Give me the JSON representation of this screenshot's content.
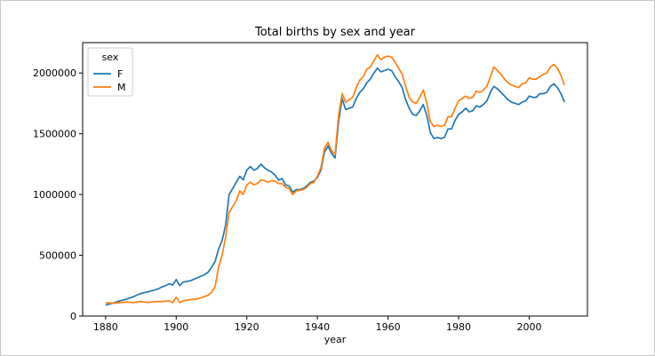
{
  "chart_data": {
    "type": "line",
    "title": "Total births by sex and year",
    "xlabel": "year",
    "ylabel": "",
    "xlim": [
      1873.5,
      2016.5
    ],
    "ylim": [
      0,
      2250000
    ],
    "x_ticks": [
      1880,
      1900,
      1920,
      1940,
      1960,
      1980,
      2000
    ],
    "y_ticks": [
      0,
      500000,
      1000000,
      1500000,
      2000000
    ],
    "x_tick_labels": [
      "1880",
      "1900",
      "1920",
      "1940",
      "1960",
      "1980",
      "2000"
    ],
    "y_tick_labels": [
      "0",
      "500000",
      "1000000",
      "1500000",
      "2000000"
    ],
    "grid": false,
    "legend": {
      "title": "sex",
      "placement": "top-left"
    },
    "series": [
      {
        "name": "F",
        "color": "#1f77b4",
        "points": [
          [
            1880,
            90000
          ],
          [
            1882,
            105000
          ],
          [
            1884,
            125000
          ],
          [
            1886,
            140000
          ],
          [
            1888,
            160000
          ],
          [
            1889,
            175000
          ],
          [
            1890,
            185000
          ],
          [
            1892,
            200000
          ],
          [
            1894,
            215000
          ],
          [
            1895,
            225000
          ],
          [
            1896,
            240000
          ],
          [
            1897,
            250000
          ],
          [
            1898,
            265000
          ],
          [
            1899,
            255000
          ],
          [
            1900,
            300000
          ],
          [
            1901,
            250000
          ],
          [
            1902,
            280000
          ],
          [
            1904,
            290000
          ],
          [
            1906,
            315000
          ],
          [
            1908,
            340000
          ],
          [
            1909,
            360000
          ],
          [
            1910,
            400000
          ],
          [
            1911,
            450000
          ],
          [
            1912,
            550000
          ],
          [
            1913,
            620000
          ],
          [
            1914,
            750000
          ],
          [
            1915,
            1000000
          ],
          [
            1916,
            1050000
          ],
          [
            1917,
            1100000
          ],
          [
            1918,
            1150000
          ],
          [
            1919,
            1120000
          ],
          [
            1920,
            1200000
          ],
          [
            1921,
            1230000
          ],
          [
            1922,
            1200000
          ],
          [
            1923,
            1215000
          ],
          [
            1924,
            1250000
          ],
          [
            1925,
            1220000
          ],
          [
            1926,
            1200000
          ],
          [
            1927,
            1185000
          ],
          [
            1928,
            1160000
          ],
          [
            1929,
            1120000
          ],
          [
            1930,
            1130000
          ],
          [
            1931,
            1080000
          ],
          [
            1932,
            1070000
          ],
          [
            1933,
            1020000
          ],
          [
            1934,
            1040000
          ],
          [
            1935,
            1040000
          ],
          [
            1936,
            1050000
          ],
          [
            1937,
            1070000
          ],
          [
            1938,
            1100000
          ],
          [
            1939,
            1110000
          ],
          [
            1940,
            1140000
          ],
          [
            1941,
            1200000
          ],
          [
            1942,
            1350000
          ],
          [
            1943,
            1400000
          ],
          [
            1944,
            1340000
          ],
          [
            1945,
            1300000
          ],
          [
            1946,
            1600000
          ],
          [
            1947,
            1790000
          ],
          [
            1948,
            1700000
          ],
          [
            1949,
            1710000
          ],
          [
            1950,
            1720000
          ],
          [
            1951,
            1790000
          ],
          [
            1952,
            1840000
          ],
          [
            1953,
            1870000
          ],
          [
            1954,
            1920000
          ],
          [
            1955,
            1950000
          ],
          [
            1956,
            2000000
          ],
          [
            1957,
            2040000
          ],
          [
            1958,
            2010000
          ],
          [
            1959,
            2020000
          ],
          [
            1960,
            2030000
          ],
          [
            1961,
            2020000
          ],
          [
            1962,
            1970000
          ],
          [
            1963,
            1930000
          ],
          [
            1964,
            1880000
          ],
          [
            1965,
            1780000
          ],
          [
            1966,
            1710000
          ],
          [
            1967,
            1660000
          ],
          [
            1968,
            1650000
          ],
          [
            1969,
            1690000
          ],
          [
            1970,
            1740000
          ],
          [
            1971,
            1650000
          ],
          [
            1972,
            1510000
          ],
          [
            1973,
            1460000
          ],
          [
            1974,
            1470000
          ],
          [
            1975,
            1460000
          ],
          [
            1976,
            1470000
          ],
          [
            1977,
            1540000
          ],
          [
            1978,
            1540000
          ],
          [
            1979,
            1610000
          ],
          [
            1980,
            1660000
          ],
          [
            1981,
            1680000
          ],
          [
            1982,
            1710000
          ],
          [
            1983,
            1680000
          ],
          [
            1984,
            1690000
          ],
          [
            1985,
            1730000
          ],
          [
            1986,
            1720000
          ],
          [
            1987,
            1740000
          ],
          [
            1988,
            1770000
          ],
          [
            1989,
            1840000
          ],
          [
            1990,
            1890000
          ],
          [
            1991,
            1870000
          ],
          [
            1992,
            1840000
          ],
          [
            1993,
            1810000
          ],
          [
            1994,
            1780000
          ],
          [
            1995,
            1760000
          ],
          [
            1996,
            1750000
          ],
          [
            1997,
            1740000
          ],
          [
            1998,
            1760000
          ],
          [
            1999,
            1770000
          ],
          [
            2000,
            1810000
          ],
          [
            2001,
            1800000
          ],
          [
            2002,
            1800000
          ],
          [
            2003,
            1830000
          ],
          [
            2004,
            1830000
          ],
          [
            2005,
            1840000
          ],
          [
            2006,
            1890000
          ],
          [
            2007,
            1910000
          ],
          [
            2008,
            1880000
          ],
          [
            2009,
            1830000
          ],
          [
            2010,
            1760000
          ]
        ]
      },
      {
        "name": "M",
        "color": "#ff7f0e",
        "points": [
          [
            1880,
            110000
          ],
          [
            1882,
            105000
          ],
          [
            1884,
            110000
          ],
          [
            1886,
            115000
          ],
          [
            1888,
            110000
          ],
          [
            1889,
            115000
          ],
          [
            1890,
            120000
          ],
          [
            1892,
            112000
          ],
          [
            1894,
            118000
          ],
          [
            1896,
            120000
          ],
          [
            1898,
            125000
          ],
          [
            1899,
            110000
          ],
          [
            1900,
            155000
          ],
          [
            1901,
            110000
          ],
          [
            1902,
            125000
          ],
          [
            1904,
            135000
          ],
          [
            1906,
            140000
          ],
          [
            1908,
            160000
          ],
          [
            1909,
            170000
          ],
          [
            1910,
            195000
          ],
          [
            1911,
            240000
          ],
          [
            1912,
            400000
          ],
          [
            1913,
            500000
          ],
          [
            1914,
            650000
          ],
          [
            1915,
            850000
          ],
          [
            1916,
            900000
          ],
          [
            1917,
            950000
          ],
          [
            1918,
            1030000
          ],
          [
            1919,
            1000000
          ],
          [
            1920,
            1080000
          ],
          [
            1921,
            1100000
          ],
          [
            1922,
            1080000
          ],
          [
            1923,
            1090000
          ],
          [
            1924,
            1120000
          ],
          [
            1925,
            1115000
          ],
          [
            1926,
            1100000
          ],
          [
            1927,
            1115000
          ],
          [
            1928,
            1110000
          ],
          [
            1929,
            1090000
          ],
          [
            1930,
            1090000
          ],
          [
            1931,
            1060000
          ],
          [
            1932,
            1050000
          ],
          [
            1933,
            1000000
          ],
          [
            1934,
            1030000
          ],
          [
            1935,
            1035000
          ],
          [
            1936,
            1040000
          ],
          [
            1937,
            1060000
          ],
          [
            1938,
            1090000
          ],
          [
            1939,
            1100000
          ],
          [
            1940,
            1150000
          ],
          [
            1941,
            1220000
          ],
          [
            1942,
            1380000
          ],
          [
            1943,
            1430000
          ],
          [
            1944,
            1360000
          ],
          [
            1945,
            1330000
          ],
          [
            1946,
            1650000
          ],
          [
            1947,
            1830000
          ],
          [
            1948,
            1760000
          ],
          [
            1949,
            1780000
          ],
          [
            1950,
            1800000
          ],
          [
            1951,
            1880000
          ],
          [
            1952,
            1940000
          ],
          [
            1953,
            1970000
          ],
          [
            1954,
            2030000
          ],
          [
            1955,
            2050000
          ],
          [
            1956,
            2100000
          ],
          [
            1957,
            2150000
          ],
          [
            1958,
            2110000
          ],
          [
            1959,
            2130000
          ],
          [
            1960,
            2140000
          ],
          [
            1961,
            2130000
          ],
          [
            1962,
            2090000
          ],
          [
            1963,
            2040000
          ],
          [
            1964,
            1990000
          ],
          [
            1965,
            1890000
          ],
          [
            1966,
            1800000
          ],
          [
            1967,
            1760000
          ],
          [
            1968,
            1750000
          ],
          [
            1969,
            1800000
          ],
          [
            1970,
            1860000
          ],
          [
            1971,
            1750000
          ],
          [
            1972,
            1600000
          ],
          [
            1973,
            1560000
          ],
          [
            1974,
            1570000
          ],
          [
            1975,
            1560000
          ],
          [
            1976,
            1570000
          ],
          [
            1977,
            1640000
          ],
          [
            1978,
            1640000
          ],
          [
            1979,
            1710000
          ],
          [
            1980,
            1770000
          ],
          [
            1981,
            1790000
          ],
          [
            1982,
            1810000
          ],
          [
            1983,
            1790000
          ],
          [
            1984,
            1800000
          ],
          [
            1985,
            1850000
          ],
          [
            1986,
            1840000
          ],
          [
            1987,
            1860000
          ],
          [
            1988,
            1890000
          ],
          [
            1989,
            1970000
          ],
          [
            1990,
            2050000
          ],
          [
            1991,
            2020000
          ],
          [
            1992,
            1990000
          ],
          [
            1993,
            1950000
          ],
          [
            1994,
            1920000
          ],
          [
            1995,
            1900000
          ],
          [
            1996,
            1890000
          ],
          [
            1997,
            1880000
          ],
          [
            1998,
            1910000
          ],
          [
            1999,
            1920000
          ],
          [
            2000,
            1960000
          ],
          [
            2001,
            1950000
          ],
          [
            2002,
            1950000
          ],
          [
            2003,
            1970000
          ],
          [
            2004,
            1990000
          ],
          [
            2005,
            2000000
          ],
          [
            2006,
            2050000
          ],
          [
            2007,
            2070000
          ],
          [
            2008,
            2040000
          ],
          [
            2009,
            1980000
          ],
          [
            2010,
            1900000
          ]
        ]
      }
    ]
  }
}
